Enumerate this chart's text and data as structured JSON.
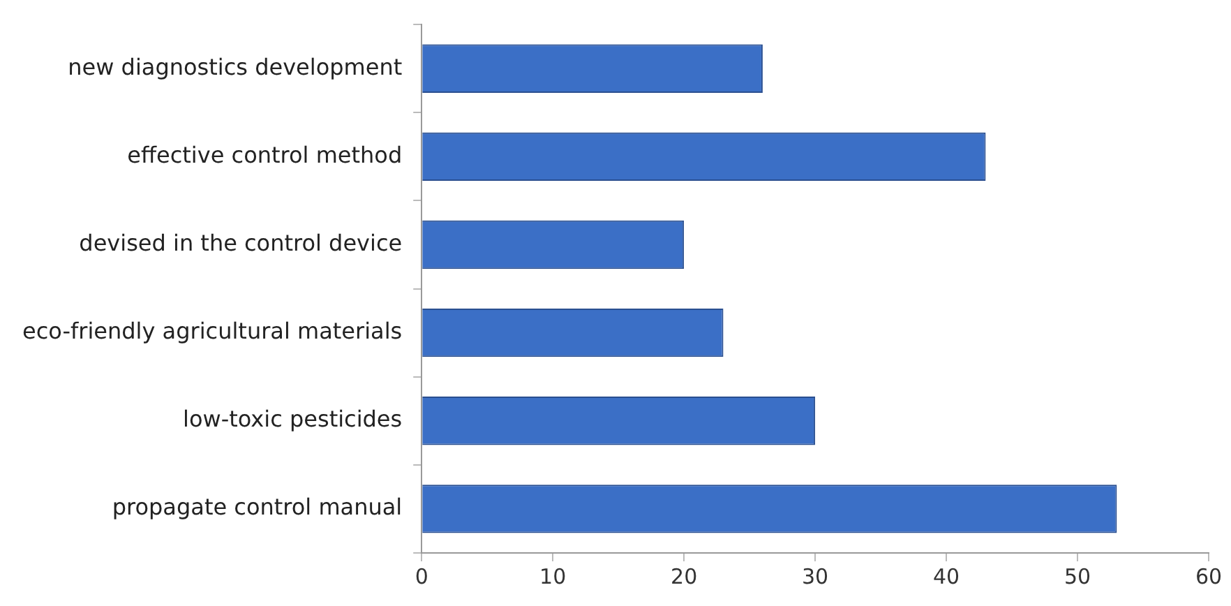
{
  "chart_data": {
    "type": "bar",
    "orientation": "horizontal",
    "categories": [
      "new diagnostics development",
      "effective control method",
      "devised in the control device",
      "eco-friendly agricultural materials",
      "low-toxic pesticides",
      "propagate control manual"
    ],
    "values": [
      26,
      43,
      20,
      23,
      30,
      53
    ],
    "color": "#3b6fc6",
    "xlim": [
      0,
      60
    ],
    "xticks": [
      0,
      10,
      20,
      30,
      40,
      50,
      60
    ],
    "grid": false,
    "legend": false
  }
}
